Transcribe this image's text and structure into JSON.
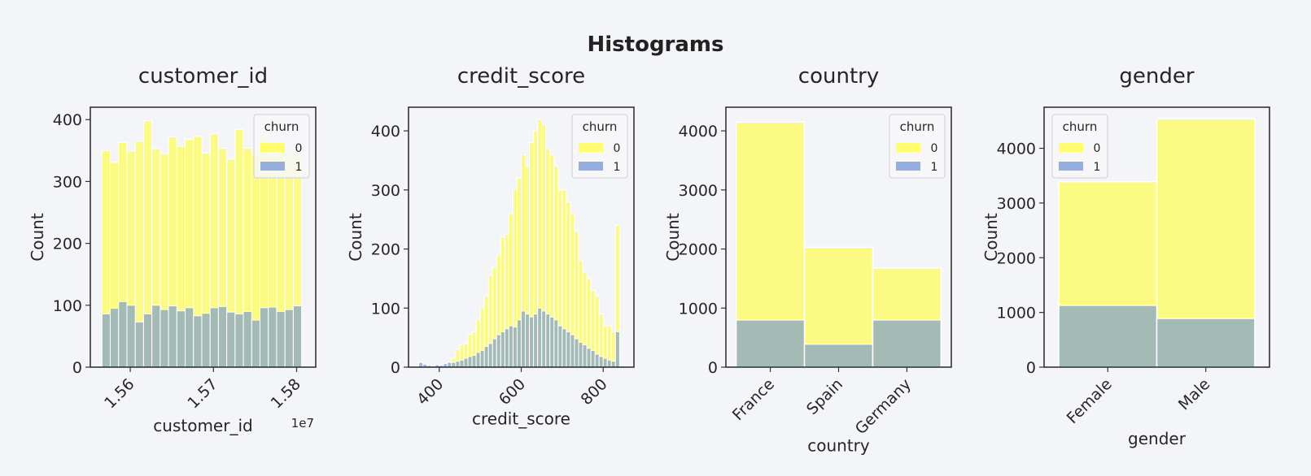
{
  "figure": {
    "title": "Histograms"
  },
  "colors": {
    "churn_0": "#ffff33",
    "churn_1": "#6b8fd6",
    "background": "#f4f5f9",
    "frame": "#333333",
    "text": "#262626"
  },
  "chart_data": [
    {
      "type": "bar",
      "title": "customer_id",
      "xlabel": "customer_id",
      "ylabel": "Count",
      "x_offset_label": "1e7",
      "xlim": [
        1.5552,
        1.5823
      ],
      "ylim": [
        0,
        420
      ],
      "xticks": [
        1.56,
        1.57,
        1.58
      ],
      "xticklabels": [
        "1.56",
        "1.57",
        "1.58"
      ],
      "yticks": [
        0,
        100,
        200,
        300,
        400
      ],
      "yticklabels": [
        "0",
        "100",
        "200",
        "300",
        "400"
      ],
      "legend": {
        "title": "churn",
        "entries": [
          "0",
          "1"
        ],
        "placement": "upper right"
      },
      "bins": {
        "start": 1.5566,
        "width": 0.001,
        "count": 24
      },
      "series": [
        {
          "name": "0",
          "values": [
            350,
            331,
            363,
            349,
            365,
            398,
            353,
            345,
            372,
            357,
            368,
            373,
            346,
            377,
            354,
            336,
            384,
            354,
            345,
            372,
            345,
            358,
            346,
            344
          ]
        },
        {
          "name": "1",
          "values": [
            86,
            95,
            106,
            100,
            73,
            86,
            100,
            93,
            99,
            91,
            96,
            83,
            87,
            96,
            98,
            89,
            86,
            90,
            76,
            96,
            97,
            90,
            93,
            99
          ]
        }
      ]
    },
    {
      "type": "bar",
      "title": "credit_score",
      "xlabel": "credit_score",
      "ylabel": "Count",
      "xlim": [
        325,
        875
      ],
      "ylim": [
        0,
        440
      ],
      "xticks": [
        400,
        600,
        800
      ],
      "xticklabels": [
        "400",
        "600",
        "800"
      ],
      "yticks": [
        0,
        100,
        200,
        300,
        400
      ],
      "yticklabels": [
        "0",
        "100",
        "200",
        "300",
        "400"
      ],
      "legend": {
        "title": "churn",
        "entries": [
          "0",
          "1"
        ],
        "placement": "upper right"
      },
      "bins": {
        "start": 350,
        "width": 10,
        "count": 50
      },
      "series": [
        {
          "name": "0",
          "values": [
            0,
            0,
            0,
            0,
            0,
            0,
            0,
            5,
            15,
            30,
            38,
            40,
            55,
            60,
            80,
            100,
            120,
            155,
            170,
            190,
            220,
            225,
            260,
            300,
            320,
            360,
            340,
            380,
            400,
            420,
            410,
            370,
            360,
            340,
            300,
            300,
            280,
            260,
            230,
            180,
            160,
            150,
            130,
            120,
            90,
            70,
            70,
            60,
            240,
            0
          ]
        },
        {
          "name": "1",
          "values": [
            8,
            5,
            3,
            2,
            4,
            3,
            6,
            8,
            8,
            10,
            12,
            15,
            18,
            20,
            25,
            28,
            35,
            40,
            48,
            55,
            60,
            65,
            70,
            68,
            80,
            95,
            90,
            85,
            90,
            100,
            95,
            90,
            85,
            80,
            70,
            65,
            60,
            55,
            48,
            42,
            38,
            32,
            28,
            22,
            18,
            15,
            12,
            10,
            60,
            0
          ]
        }
      ]
    },
    {
      "type": "bar",
      "title": "country",
      "xlabel": "country",
      "ylabel": "Count",
      "xlim": [
        -0.65,
        2.65
      ],
      "ylim": [
        0,
        4400
      ],
      "categories": [
        "France",
        "Spain",
        "Germany"
      ],
      "yticks": [
        0,
        1000,
        2000,
        3000,
        4000
      ],
      "yticklabels": [
        "0",
        "1000",
        "2000",
        "3000",
        "4000"
      ],
      "legend": {
        "title": "churn",
        "entries": [
          "0",
          "1"
        ],
        "placement": "upper right"
      },
      "series": [
        {
          "name": "0",
          "values": [
            4150,
            2030,
            1680
          ]
        },
        {
          "name": "1",
          "values": [
            800,
            390,
            800
          ]
        }
      ]
    },
    {
      "type": "bar",
      "title": "gender",
      "xlabel": "gender",
      "ylabel": "Count",
      "xlim": [
        -0.65,
        1.65
      ],
      "ylim": [
        0,
        4750
      ],
      "categories": [
        "Female",
        "Male"
      ],
      "yticks": [
        0,
        1000,
        2000,
        3000,
        4000
      ],
      "yticklabels": [
        "0",
        "1000",
        "2000",
        "3000",
        "4000"
      ],
      "legend": {
        "title": "churn",
        "entries": [
          "0",
          "1"
        ],
        "placement": "upper left"
      },
      "series": [
        {
          "name": "0",
          "values": [
            3390,
            4540
          ]
        },
        {
          "name": "1",
          "values": [
            1130,
            890
          ]
        }
      ]
    }
  ]
}
